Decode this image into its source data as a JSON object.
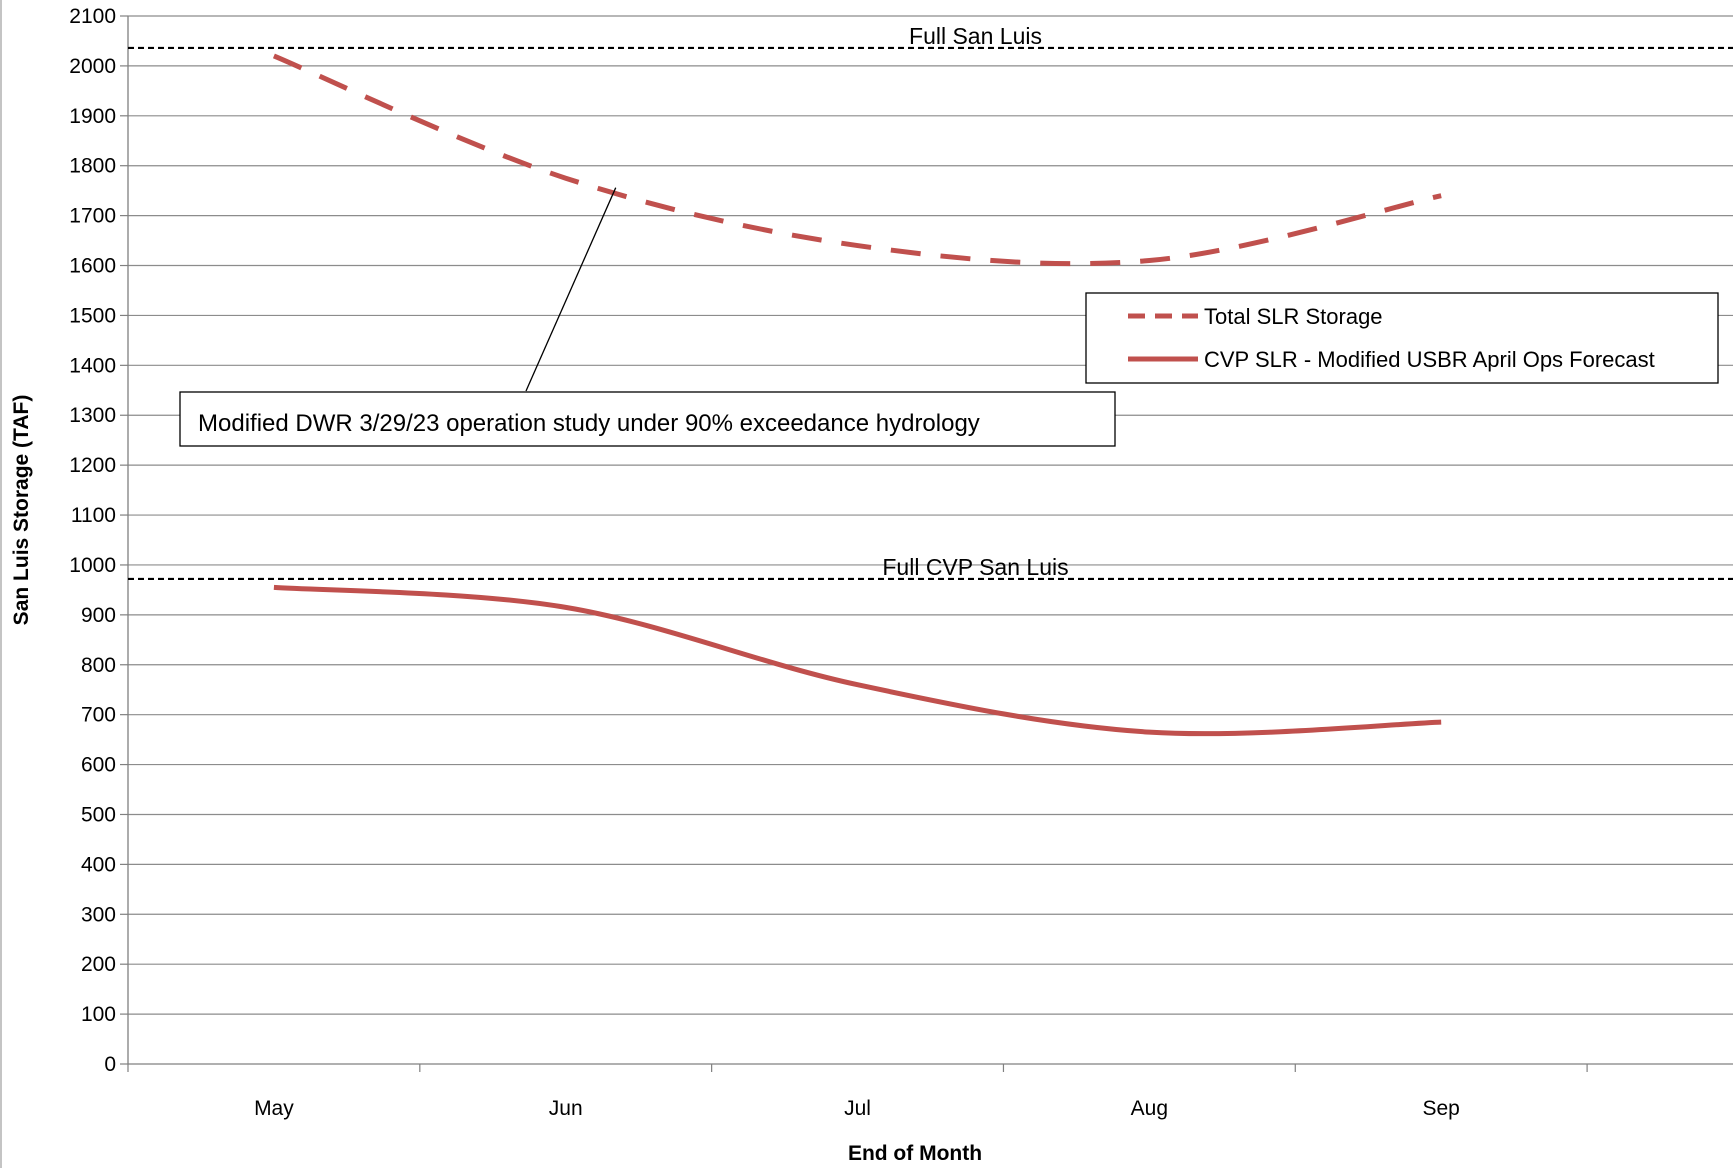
{
  "chart_data": {
    "type": "line",
    "title": "",
    "xlabel": "End of Month",
    "ylabel": "San Luis Storage (TAF)",
    "categories": [
      "May",
      "Jun",
      "Jul",
      "Aug",
      "Sep"
    ],
    "ylim": [
      0,
      2100
    ],
    "ytick_step": 100,
    "grid": true,
    "legend_position": "right",
    "series": [
      {
        "name": "Total SLR Storage",
        "values": [
          2020,
          1775,
          1640,
          1610,
          1740
        ],
        "style": "dashed",
        "color": "#c0504d"
      },
      {
        "name": "CVP SLR - Modified USBR April Ops Forecast",
        "values": [
          955,
          915,
          760,
          665,
          685
        ],
        "style": "solid",
        "color": "#c0504d"
      }
    ],
    "reference_lines": [
      {
        "label": "Full  San Luis",
        "value": 2036
      },
      {
        "label": "Full CVP San Luis",
        "value": 972
      }
    ],
    "annotation": {
      "text": "Modified DWR 3/29/23 operation study under 90% exceedance hydrology",
      "points_to": {
        "series": 0,
        "category": "Jun",
        "value": 1760
      }
    }
  }
}
